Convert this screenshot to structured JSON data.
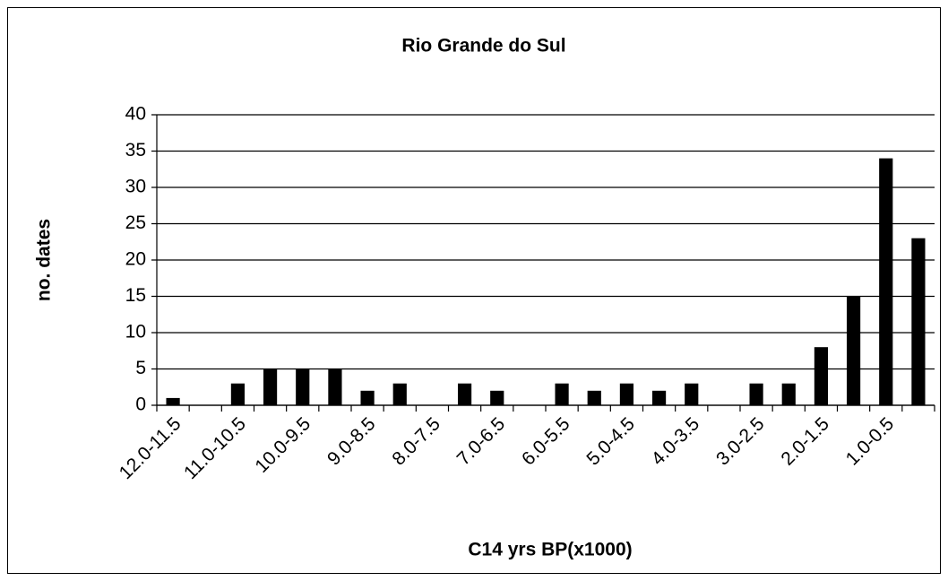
{
  "chart_data": {
    "type": "bar",
    "title": "Rio Grande do Sul",
    "x_label": "C14 yrs BP(x1000)",
    "y_label": "no. dates",
    "categories": [
      "12.0-11.5",
      null,
      "11.0-10.5",
      null,
      "10.0-9.5",
      null,
      "9.0-8.5",
      null,
      "8.0-7.5",
      null,
      "7.0-6.5",
      null,
      "6.0-5.5",
      null,
      "5.0-4.5",
      null,
      "4.0-3.5",
      null,
      "3.0-2.5",
      null,
      "2.0-1.5",
      null,
      "1.0-0.5",
      null
    ],
    "values": [
      1,
      0,
      3,
      5,
      5,
      5,
      2,
      3,
      0,
      3,
      2,
      0,
      3,
      2,
      3,
      2,
      3,
      0,
      3,
      3,
      8,
      15,
      34,
      23
    ],
    "color": "#000000",
    "ylim": [
      0,
      40
    ],
    "yticks": [
      0,
      5,
      10,
      15,
      20,
      25,
      30,
      35,
      40
    ],
    "grid": true
  }
}
